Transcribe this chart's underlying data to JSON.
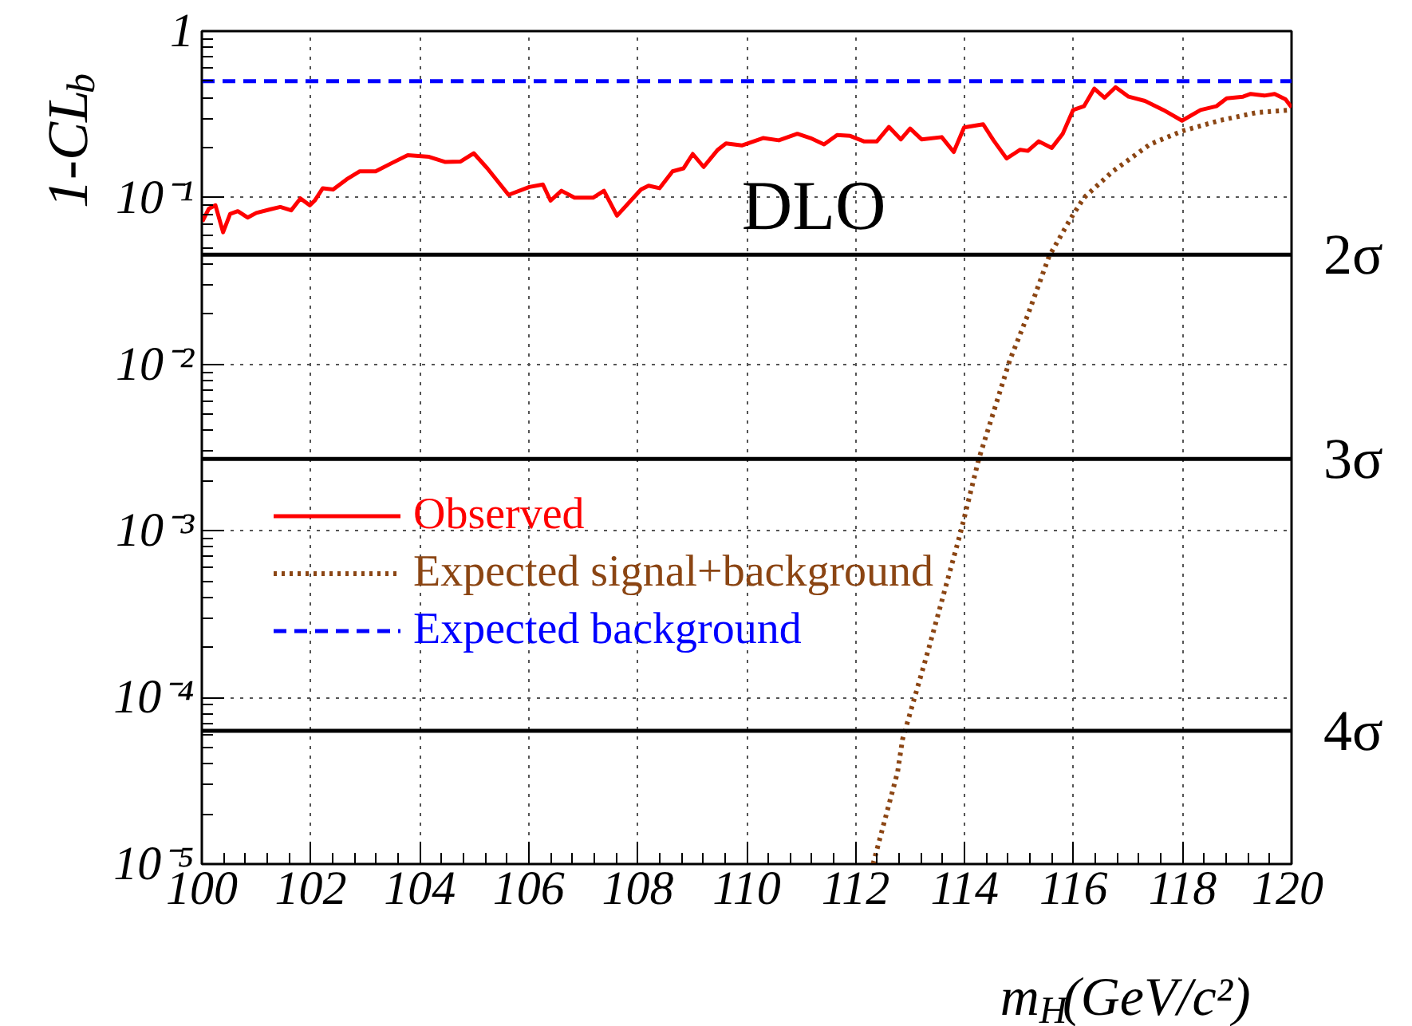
{
  "chart_data": {
    "type": "line",
    "xlabel": "m$_{H}$(GeV/c²)",
    "ylabel": "1-CL$_{b}$",
    "log": "y",
    "grid": true,
    "legend": "left",
    "xlim": [
      100,
      120
    ],
    "xticks": [
      100,
      102,
      104,
      106,
      108,
      110,
      112,
      114,
      116,
      118,
      120
    ],
    "ylim": [
      1e-05,
      1
    ],
    "yticks": [
      {
        "value": 1e-05,
        "label": "10⁻⁵"
      },
      {
        "value": 0.0001,
        "label": "10⁻⁴"
      },
      {
        "value": 0.001,
        "label": "10⁻³"
      },
      {
        "value": 0.01,
        "label": "10⁻²"
      },
      {
        "value": 0.1,
        "label": "10⁻¹"
      },
      1
    ],
    "annotations": [
      "DLO"
    ],
    "ref_lines": [
      {
        "axis": "y",
        "value": 0.0455,
        "label": "2σ",
        "color": "#000000"
      },
      {
        "axis": "y",
        "value": 0.0027,
        "label": "3σ",
        "color": "#000000"
      },
      {
        "axis": "y",
        "value": 6.3e-05,
        "label": "4σ",
        "color": "#000000"
      }
    ],
    "series": [
      {
        "name": "Observed",
        "color": "#ff0000",
        "line_style": "solid",
        "x": [
          100.01,
          100.13,
          100.25,
          100.39,
          100.52,
          100.66,
          100.84,
          101.0,
          101.25,
          101.44,
          101.64,
          101.81,
          101.98,
          102.07,
          102.22,
          102.41,
          102.66,
          102.9,
          103.19,
          103.48,
          103.78,
          104.17,
          104.46,
          104.75,
          104.99,
          105.24,
          105.63,
          106.01,
          106.26,
          106.4,
          106.6,
          106.84,
          107.18,
          107.38,
          107.62,
          108.06,
          108.2,
          108.4,
          108.64,
          108.84,
          109.01,
          109.21,
          109.47,
          109.62,
          109.91,
          110.3,
          110.59,
          110.93,
          111.17,
          111.42,
          111.66,
          111.9,
          112.15,
          112.39,
          112.61,
          112.83,
          113.0,
          113.21,
          113.58,
          113.8,
          113.99,
          114.34,
          114.53,
          114.77,
          115.02,
          115.16,
          115.36,
          115.6,
          115.8,
          115.99,
          116.19,
          116.38,
          116.57,
          116.77,
          117.01,
          117.31,
          117.65,
          117.99,
          118.33,
          118.62,
          118.81,
          119.11,
          119.25,
          119.5,
          119.69,
          119.89,
          120.0
        ],
        "values": [
          0.072,
          0.086,
          0.09,
          0.062,
          0.08,
          0.083,
          0.076,
          0.081,
          0.085,
          0.088,
          0.084,
          0.099,
          0.09,
          0.096,
          0.114,
          0.112,
          0.129,
          0.144,
          0.144,
          0.161,
          0.18,
          0.176,
          0.164,
          0.165,
          0.185,
          0.15,
          0.104,
          0.116,
          0.12,
          0.096,
          0.11,
          0.1,
          0.1,
          0.11,
          0.078,
          0.112,
          0.118,
          0.114,
          0.144,
          0.15,
          0.183,
          0.153,
          0.194,
          0.212,
          0.206,
          0.228,
          0.221,
          0.242,
          0.228,
          0.209,
          0.238,
          0.235,
          0.218,
          0.218,
          0.266,
          0.224,
          0.26,
          0.224,
          0.231,
          0.188,
          0.264,
          0.276,
          0.221,
          0.172,
          0.194,
          0.191,
          0.218,
          0.199,
          0.242,
          0.336,
          0.354,
          0.452,
          0.398,
          0.461,
          0.404,
          0.381,
          0.336,
          0.29,
          0.336,
          0.354,
          0.395,
          0.404,
          0.42,
          0.41,
          0.42,
          0.39,
          0.349
        ]
      },
      {
        "name": "Expected signal+background",
        "color": "#8b4513",
        "line_style": "dotted",
        "x": [
          112.32,
          112.77,
          112.86,
          113.34,
          113.93,
          114.26,
          114.83,
          115.16,
          115.55,
          115.94,
          116.19,
          116.72,
          117.4,
          117.99,
          118.67,
          119.35,
          119.98
        ],
        "values": [
          1e-05,
          3.57e-05,
          5.6e-05,
          0.000196,
          0.00099,
          0.0027,
          0.0106,
          0.0198,
          0.0445,
          0.0744,
          0.1,
          0.144,
          0.209,
          0.251,
          0.29,
          0.324,
          0.336
        ]
      },
      {
        "name": "Expected background",
        "color": "#0000ff",
        "line_style": "dashed",
        "x": [
          100,
          120
        ],
        "values": [
          0.5,
          0.5
        ]
      }
    ]
  }
}
